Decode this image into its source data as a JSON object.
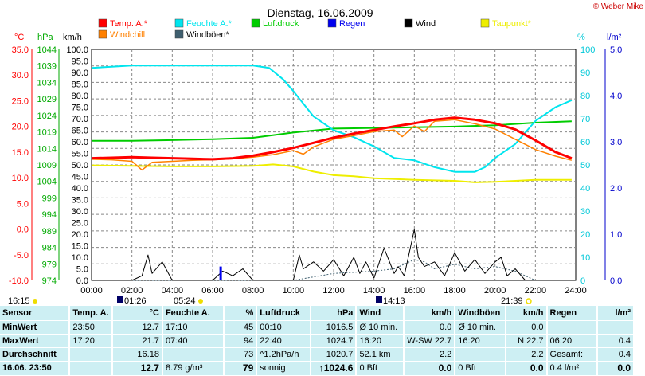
{
  "title": "Dienstag, 16.06.2009",
  "credit": "© Weber Mike",
  "legend": [
    {
      "label": "Temp. A.*",
      "color": "#ff0000"
    },
    {
      "label": "Feuchte A.*",
      "color": "#00e5ee"
    },
    {
      "label": "Luftdruck",
      "color": "#00cc00"
    },
    {
      "label": "Regen",
      "color": "#0000ee"
    },
    {
      "label": "Wind",
      "color": "#000000"
    },
    {
      "label": "Taupunkt*",
      "color": "#eeee00"
    },
    {
      "label": "Windchill",
      "color": "#ff8000"
    },
    {
      "label": "Windböen*",
      "color": "#3f5f6f"
    }
  ],
  "axis_units": {
    "temp": "°C",
    "pressure": "hPa",
    "wind": "km/h",
    "humidity": "%",
    "rain": "l/m²"
  },
  "times": {
    "sunrise": "05:24",
    "sunset": "21:39",
    "moonrise": "01:26",
    "moonset": "14:13",
    "left": "16:15"
  },
  "chart_data": {
    "type": "line",
    "title": "Dienstag, 16.06.2009",
    "x": {
      "range": [
        0,
        24
      ],
      "ticks": [
        "00:00",
        "02:00",
        "04:00",
        "06:00",
        "08:00",
        "10:00",
        "12:00",
        "14:00",
        "16:00",
        "18:00",
        "20:00",
        "22:00",
        "24:00"
      ]
    },
    "axes": {
      "temp": {
        "unit": "°C",
        "ylim": [
          -10,
          35
        ],
        "ticks": [
          "35.0",
          "30.0",
          "25.0",
          "20.0",
          "15.0",
          "10.0",
          "5.0",
          "0.0",
          "-5.0",
          "-10.0"
        ]
      },
      "pressure": {
        "unit": "hPa",
        "ylim": [
          974,
          1044
        ],
        "ticks": [
          "1044",
          "1039",
          "1034",
          "1029",
          "1024",
          "1019",
          "1014",
          "1009",
          "1004",
          "999",
          "994",
          "989",
          "984",
          "979",
          "974"
        ]
      },
      "wind": {
        "unit": "km/h",
        "ylim": [
          0,
          100
        ],
        "ticks": [
          "100.0",
          "95.0",
          "90.0",
          "85.0",
          "80.0",
          "75.0",
          "70.0",
          "65.0",
          "60.0",
          "55.0",
          "50.0",
          "45.0",
          "40.0",
          "35.0",
          "30.0",
          "25.0",
          "20.0",
          "15.0",
          "10.0",
          "5.0",
          "0.0"
        ]
      },
      "humidity": {
        "unit": "%",
        "ylim": [
          0,
          100
        ],
        "ticks": [
          "100",
          "90",
          "80",
          "70",
          "60",
          "50",
          "40",
          "30",
          "20",
          "10",
          "0"
        ]
      },
      "rain": {
        "unit": "l/m²",
        "ylim": [
          0,
          5
        ],
        "ticks": [
          "5.0",
          "4.0",
          "3.0",
          "2.0",
          "1.0",
          "0.0"
        ]
      }
    },
    "series": [
      {
        "name": "Temp. A.*",
        "axis": "temp",
        "color": "#ff0000",
        "x": [
          0,
          1,
          2,
          3,
          4,
          5,
          6,
          7,
          8,
          9,
          10,
          11,
          12,
          13,
          14,
          15,
          16,
          17,
          18,
          19,
          20,
          21,
          22,
          23,
          23.8
        ],
        "y": [
          13.8,
          13.9,
          14.0,
          13.9,
          13.8,
          13.7,
          13.6,
          13.8,
          14.3,
          15.0,
          15.8,
          16.8,
          17.8,
          18.6,
          19.3,
          20.0,
          20.6,
          21.3,
          21.7,
          21.3,
          20.6,
          19.4,
          17.3,
          15.0,
          13.8
        ]
      },
      {
        "name": "Windchill",
        "axis": "temp",
        "color": "#ff8000",
        "x": [
          0,
          1,
          2,
          2.5,
          3,
          4,
          5,
          6,
          7,
          8,
          9,
          10,
          10.5,
          11,
          12,
          13,
          14,
          15,
          15.4,
          16,
          16.5,
          17,
          18,
          19,
          20,
          21,
          22,
          23,
          23.8
        ],
        "y": [
          13.6,
          13.5,
          13.2,
          11.5,
          13.0,
          13.2,
          13.4,
          13.5,
          13.7,
          14.0,
          14.5,
          15.3,
          14.6,
          16.0,
          17.5,
          18.2,
          19.0,
          19.3,
          18.0,
          20.1,
          19.0,
          21.0,
          21.3,
          20.5,
          19.5,
          17.5,
          15.5,
          14.2,
          13.4
        ]
      },
      {
        "name": "Feuchte A.*",
        "axis": "humidity",
        "color": "#00e5ee",
        "x": [
          0,
          1,
          2,
          4,
          6,
          8,
          8.8,
          9.5,
          10,
          11,
          12,
          13,
          14,
          15,
          16,
          17,
          18,
          19,
          19.5,
          20,
          21,
          22,
          23,
          23.8
        ],
        "y": [
          92,
          92.5,
          93,
          93,
          93,
          93,
          92,
          87,
          82,
          71,
          65,
          62,
          58,
          53,
          52,
          49,
          47,
          47,
          49,
          53,
          59,
          69,
          75,
          78
        ]
      },
      {
        "name": "Luftdruck",
        "axis": "pressure",
        "color": "#00cc00",
        "x": [
          0,
          2,
          4,
          6,
          8,
          10,
          12,
          14,
          16,
          18,
          20,
          22,
          23.8
        ],
        "y": [
          1016.3,
          1016.3,
          1016.5,
          1016.8,
          1017.2,
          1018.8,
          1020.0,
          1020.2,
          1020.4,
          1020.6,
          1021.0,
          1021.8,
          1022.2
        ]
      },
      {
        "name": "Taupunkt*",
        "axis": "temp",
        "color": "#eeee00",
        "x": [
          0,
          2,
          4,
          6,
          8,
          9,
          10,
          11,
          12,
          13,
          14,
          16,
          18,
          19,
          20,
          22,
          23.8
        ],
        "y": [
          12.4,
          12.3,
          12.2,
          12.2,
          12.3,
          12.6,
          12.2,
          11.2,
          10.5,
          10.3,
          9.9,
          9.6,
          9.4,
          9.1,
          9.2,
          9.6,
          9.6
        ]
      },
      {
        "name": "Wind",
        "axis": "wind",
        "color": "#000000",
        "x": [
          0,
          2,
          2.5,
          2.8,
          3,
          3.5,
          4,
          5,
          6,
          6.5,
          7,
          7.5,
          8,
          9,
          10,
          10.3,
          10.5,
          11,
          11.5,
          12,
          12.5,
          13,
          13.3,
          13.6,
          14,
          14.5,
          15,
          15.2,
          15.5,
          16,
          16.2,
          16.5,
          17,
          17.5,
          18,
          18.5,
          19,
          19.5,
          20,
          20.3,
          20.6,
          21,
          21.5,
          22,
          24
        ],
        "y": [
          0,
          0,
          2,
          11,
          3,
          8,
          0,
          0,
          0,
          4,
          2,
          5,
          0,
          0,
          0,
          11,
          5,
          8,
          4,
          9,
          2,
          10,
          3,
          8,
          1,
          14,
          3,
          6,
          2,
          22,
          10,
          6,
          8,
          2,
          12,
          4,
          9,
          3,
          8,
          10,
          2,
          5,
          0,
          0,
          0
        ]
      },
      {
        "name": "Windböen*",
        "axis": "wind",
        "color": "#3f5f6f",
        "x": [
          0,
          2,
          4,
          6,
          8,
          10,
          12,
          14,
          15,
          16,
          16.5,
          17,
          18,
          19,
          20,
          21,
          22,
          24
        ],
        "y": [
          0,
          0,
          0,
          0,
          0,
          0,
          3,
          4,
          5,
          9,
          8,
          5,
          7,
          5,
          6,
          4,
          0,
          0
        ]
      },
      {
        "name": "Regen",
        "axis": "rain",
        "color": "#0000ee",
        "x": [
          6.4
        ],
        "y": [
          0.3
        ]
      }
    ]
  },
  "table": {
    "headers": [
      "Sensor",
      "Temp. A.",
      "°C",
      "Feuchte A.",
      "%",
      "Luftdruck",
      "hPa",
      "Wind",
      "km/h",
      "Windböen",
      "km/h",
      "Regen",
      "l/m²"
    ],
    "rows": [
      [
        "MinWert",
        "23:50",
        "12.7",
        "17:10",
        "45",
        "00:10",
        "1016.5",
        "Ø 10 min.",
        "0.0",
        "Ø 10 min.",
        "0.0",
        "",
        ""
      ],
      [
        "MaxWert",
        "17:20",
        "21.7",
        "07:40",
        "94",
        "22:40",
        "1024.7",
        "16:20",
        "W-SW 22.7",
        "16:20",
        "N 22.7",
        "06:20",
        "0.4"
      ],
      [
        "Durchschnitt",
        "",
        "16.18",
        "",
        "73",
        "^1.2hPa/h",
        "1020.7",
        "52.1 km",
        "2.2",
        "",
        "2.2",
        "Gesamt:",
        "0.4"
      ],
      [
        "16.06. 23:50",
        "",
        "12.7",
        "8.79 g/m³",
        "79",
        "sonnig",
        "↑1024.6",
        "0 Bft",
        "0.0",
        "0 Bft",
        "0.0",
        "0.4 l/m²",
        "0.0"
      ]
    ]
  }
}
